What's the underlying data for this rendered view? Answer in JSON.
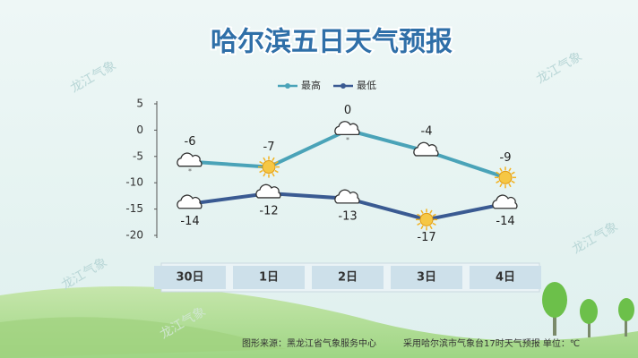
{
  "chart_data": {
    "type": "line",
    "title": "哈尔滨五日天气预报",
    "categories": [
      "30日",
      "1日",
      "2日",
      "3日",
      "4日"
    ],
    "series": [
      {
        "name": "最高",
        "color": "#4aa3b8",
        "values": [
          -6,
          -7,
          0,
          -4,
          -9
        ]
      },
      {
        "name": "最低",
        "color": "#3a5a92",
        "values": [
          -14,
          -12,
          -13,
          -17,
          -14
        ]
      }
    ],
    "ylim": [
      -20,
      5
    ],
    "yticks": [
      5,
      0,
      -5,
      -10,
      -15,
      -20
    ],
    "footer": [
      "图形来源：黑龙江省气象服务中心",
      "采用哈尔滨市气象台17时天气预报 单位：℃"
    ],
    "watermark": "龙江气象"
  }
}
